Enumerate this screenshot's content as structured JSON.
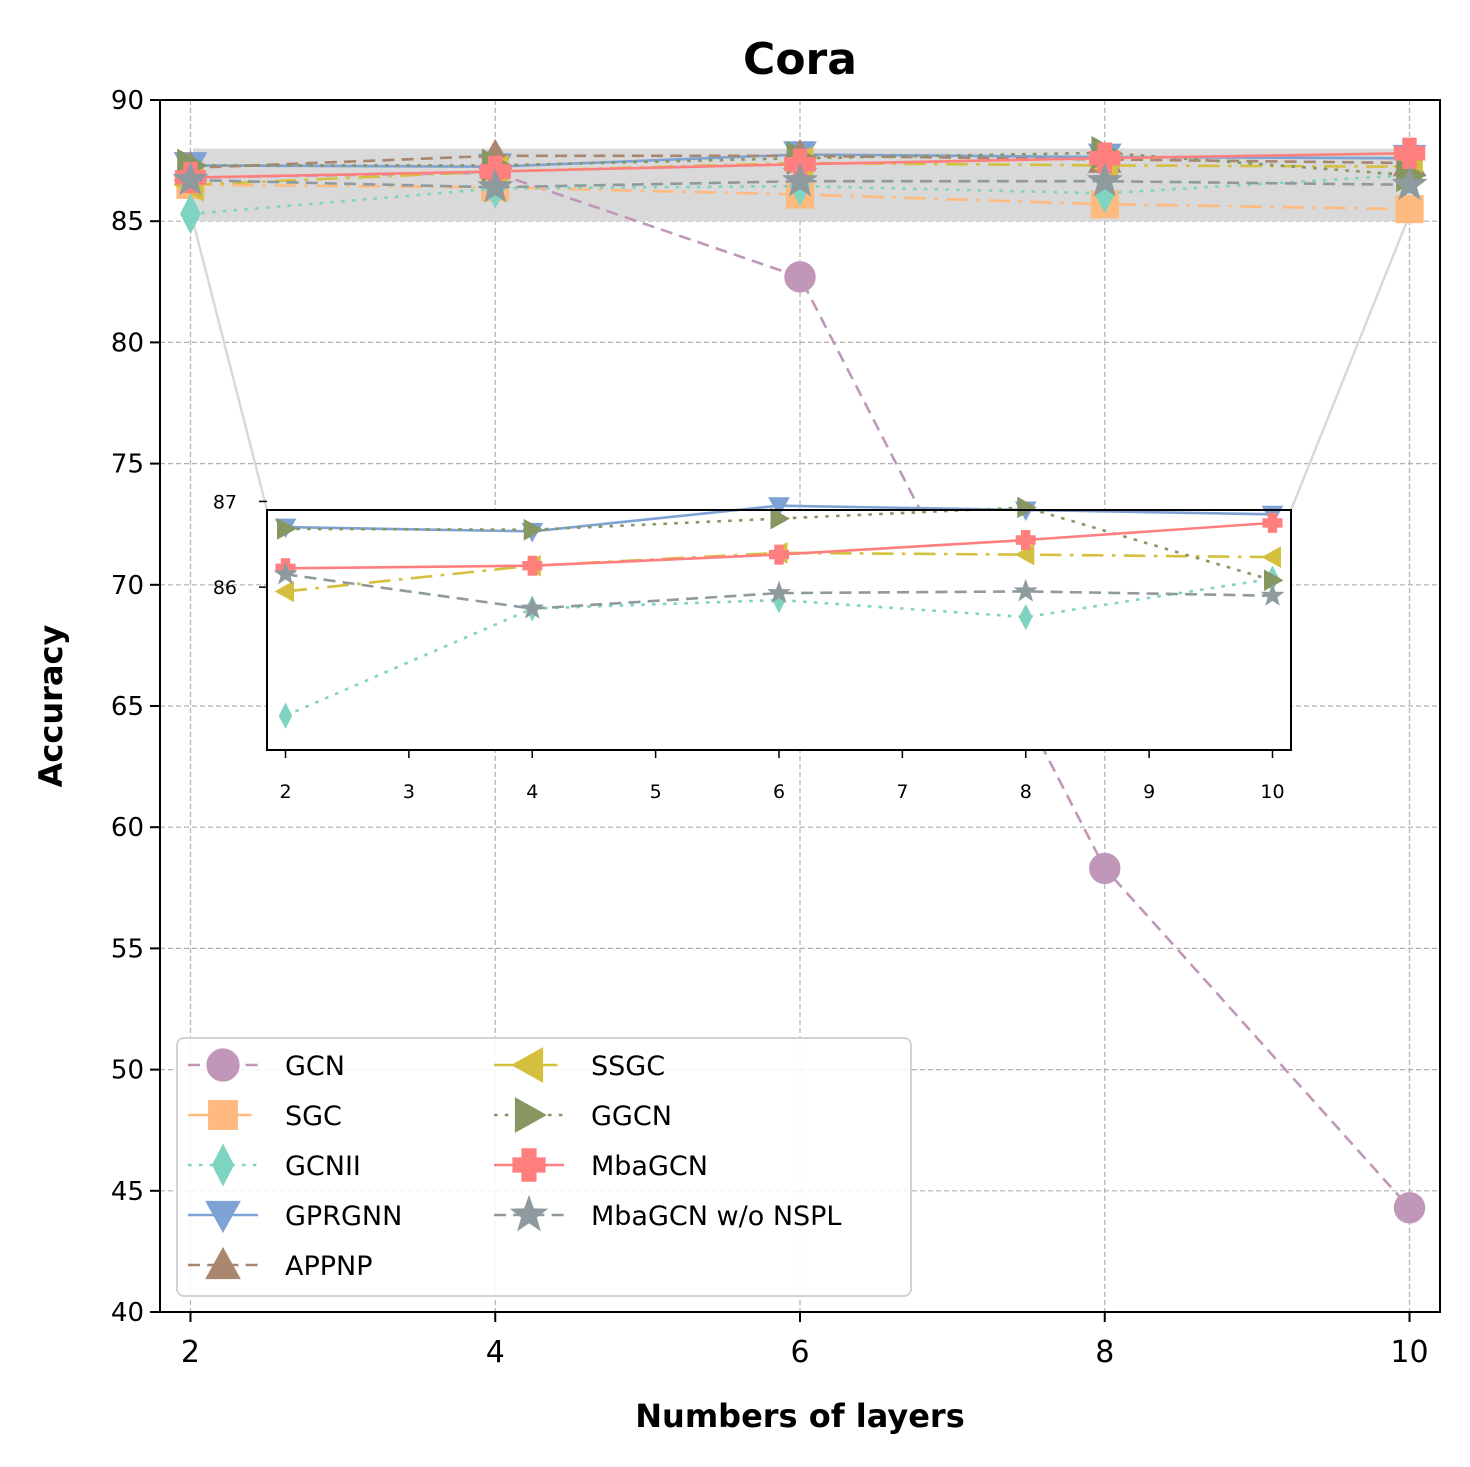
{
  "chart_data": {
    "type": "line",
    "title": "Cora",
    "xlabel": "Numbers of layers",
    "ylabel": "Accuracy",
    "x": [
      2,
      4,
      6,
      8,
      10
    ],
    "xlim": [
      1.8,
      10.2
    ],
    "ylim": [
      40,
      90
    ],
    "xticks": [
      "2",
      "4",
      "6",
      "8",
      "10"
    ],
    "yticks": [
      "40",
      "45",
      "50",
      "55",
      "60",
      "65",
      "70",
      "75",
      "80",
      "85",
      "90"
    ],
    "grid": true,
    "legend_location": "lower-left",
    "legend_columns": 2,
    "highlight_band": [
      85,
      88
    ],
    "series": [
      {
        "name": "GCN",
        "values": [
          86.8,
          87.0,
          82.7,
          58.3,
          44.3
        ],
        "color": "#c097b8",
        "marker": "circle",
        "linestyle": "dashed",
        "inset": false
      },
      {
        "name": "SGC",
        "values": [
          86.5,
          86.4,
          86.1,
          85.7,
          85.5
        ],
        "color": "#ffbb7f",
        "marker": "square",
        "linestyle": "dashdot",
        "inset": false
      },
      {
        "name": "GCNII",
        "values": [
          85.3,
          86.35,
          86.45,
          86.15,
          86.9
        ],
        "color": "#7fd4c0",
        "marker": "diamond",
        "linestyle": "dotted",
        "inset": true
      },
      {
        "name": "GPRGNN",
        "values": [
          87.3,
          87.25,
          87.75,
          87.65,
          87.6
        ],
        "color": "#7ea2d4",
        "marker": "triangle-down",
        "linestyle": "solid",
        "inset": true
      },
      {
        "name": "APPNP",
        "values": [
          87.2,
          87.7,
          87.7,
          87.55,
          87.4
        ],
        "color": "#a88670",
        "marker": "triangle-up",
        "linestyle": "dashed",
        "inset": false
      },
      {
        "name": "SSGC",
        "values": [
          86.5,
          87.05,
          87.4,
          87.3,
          87.25
        ],
        "color": "#d4bf3f",
        "marker": "triangle-left",
        "linestyle": "dashdot",
        "inset": true
      },
      {
        "name": "GGCN",
        "values": [
          87.3,
          87.3,
          87.6,
          87.82,
          86.9
        ],
        "color": "#869762",
        "marker": "triangle-right",
        "linestyle": "dotted",
        "inset": true
      },
      {
        "name": "MbaGCN",
        "values": [
          86.8,
          87.05,
          87.35,
          87.6,
          87.8
        ],
        "color": "#ff7f7f",
        "marker": "plus",
        "linestyle": "solid",
        "inset": true
      },
      {
        "name": "MbaGCN w/o NSPL",
        "values": [
          86.7,
          86.4,
          86.65,
          86.65,
          86.5
        ],
        "color": "#8f9a9f",
        "marker": "star",
        "linestyle": "dashed",
        "inset": true
      }
    ],
    "inset": {
      "xlim": [
        1.85,
        10.15
      ],
      "ylim": [
        84.1,
        86.9
      ],
      "xticks": [
        "2",
        "3",
        "4",
        "5",
        "6",
        "7",
        "8",
        "9",
        "10"
      ],
      "yticks": [
        "86",
        "87"
      ],
      "series_values": {
        "GCNII": [
          84.5,
          85.75,
          85.85,
          85.65,
          86.1
        ],
        "GPRGNN": [
          86.7,
          86.65,
          86.95,
          86.9,
          86.85
        ],
        "SSGC": [
          85.95,
          86.25,
          86.4,
          86.38,
          86.35
        ],
        "GGCN": [
          86.68,
          86.67,
          86.8,
          86.93,
          86.08
        ],
        "MbaGCN": [
          86.22,
          86.25,
          86.38,
          86.55,
          86.75
        ],
        "MbaGCN w/o NSPL": [
          86.15,
          85.75,
          85.93,
          85.95,
          85.9
        ]
      }
    }
  }
}
